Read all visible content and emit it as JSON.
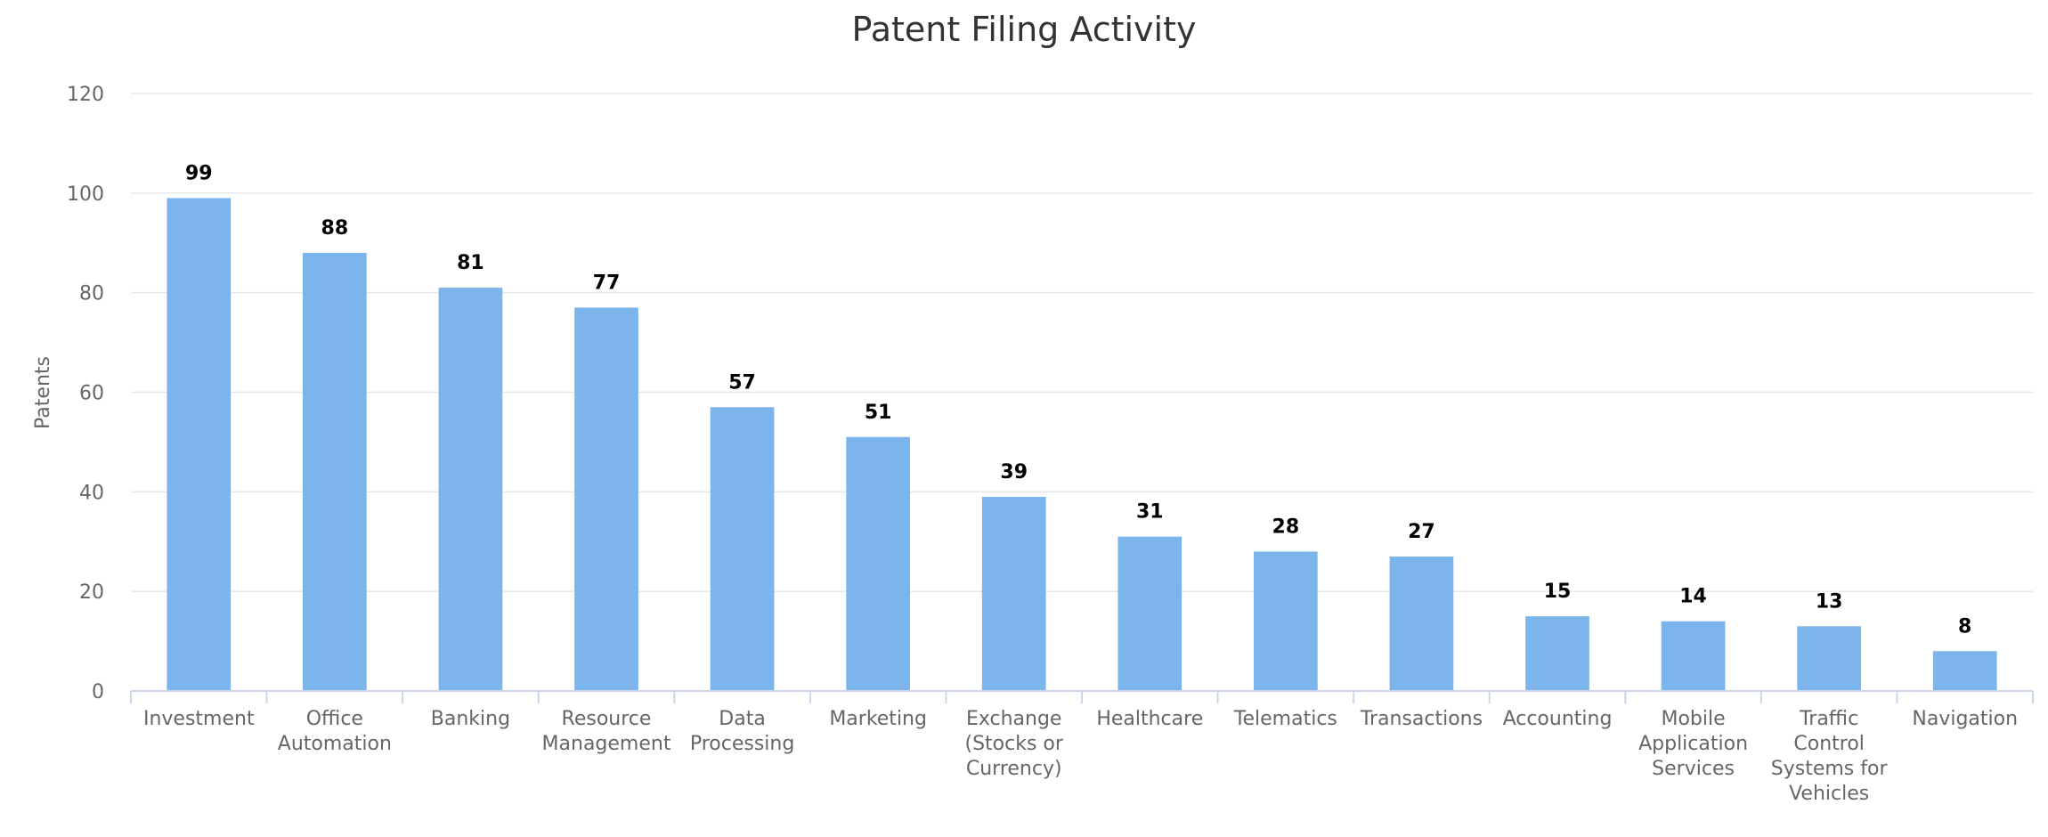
{
  "chart_data": {
    "type": "bar",
    "title": "Patent Filing Activity",
    "xlabel": "",
    "ylabel": "Patents",
    "ylim": [
      0,
      120
    ],
    "yticks": [
      0,
      20,
      40,
      60,
      80,
      100,
      120
    ],
    "grid": true,
    "categories": [
      "Investment",
      "Office Automation",
      "Banking",
      "Resource Management",
      "Data Processing",
      "Marketing",
      "Exchange (Stocks or Currency)",
      "Healthcare",
      "Telematics",
      "Transactions",
      "Accounting",
      "Mobile Application Services",
      "Traffic Control Systems for Vehicles",
      "Navigation"
    ],
    "category_lines": [
      [
        "Investment"
      ],
      [
        "Office",
        "Automation"
      ],
      [
        "Banking"
      ],
      [
        "Resource",
        "Management"
      ],
      [
        "Data",
        "Processing"
      ],
      [
        "Marketing"
      ],
      [
        "Exchange",
        "(Stocks or",
        "Currency)"
      ],
      [
        "Healthcare"
      ],
      [
        "Telematics"
      ],
      [
        "Transactions"
      ],
      [
        "Accounting"
      ],
      [
        "Mobile",
        "Application",
        "Services"
      ],
      [
        "Traffic",
        "Control",
        "Systems for",
        "Vehicles"
      ],
      [
        "Navigation"
      ]
    ],
    "values": [
      99,
      88,
      81,
      77,
      57,
      51,
      39,
      31,
      28,
      27,
      15,
      14,
      13,
      8
    ],
    "colors": {
      "bar": "#7cb5ec"
    }
  }
}
